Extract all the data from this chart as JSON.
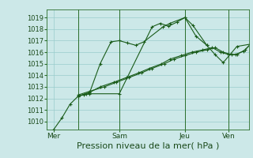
{
  "bg_color": "#cce8e8",
  "grid_color": "#99cccc",
  "line_color": "#1a5c1a",
  "xlabel": "Pression niveau de la mer( hPa )",
  "xlabel_fontsize": 8,
  "yticks": [
    1010,
    1011,
    1012,
    1013,
    1014,
    1015,
    1016,
    1017,
    1018,
    1019
  ],
  "ylim": [
    1009.3,
    1019.7
  ],
  "xtick_labels": [
    "Mer",
    "Sam",
    "Jeu",
    "Ven"
  ],
  "xtick_positions": [
    0,
    48,
    96,
    128
  ],
  "xlim": [
    -5,
    143
  ],
  "series_x": [
    [
      0,
      6,
      12,
      18,
      24,
      48,
      72,
      78,
      84,
      90,
      96,
      102,
      112
    ],
    [
      18,
      22,
      26,
      34,
      42,
      48,
      54,
      60,
      66,
      80,
      85,
      96,
      104,
      112,
      118,
      124,
      134,
      144
    ],
    [
      18,
      26,
      34,
      44,
      53,
      62,
      70,
      79,
      85,
      93,
      101,
      109,
      116,
      122,
      128,
      133,
      139,
      144
    ],
    [
      18,
      26,
      37,
      46,
      55,
      64,
      72,
      81,
      88,
      96,
      104,
      112,
      118,
      124,
      130,
      134,
      140,
      144
    ]
  ],
  "series_y": [
    [
      1009.3,
      1010.3,
      1011.5,
      1012.2,
      1012.4,
      1012.4,
      1018.2,
      1018.5,
      1018.25,
      1018.6,
      1019.0,
      1018.3,
      1016.6
    ],
    [
      1012.2,
      1012.3,
      1012.4,
      1015.0,
      1016.9,
      1017.0,
      1016.8,
      1016.6,
      1016.9,
      1018.2,
      1018.5,
      1019.0,
      1017.4,
      1016.6,
      1015.8,
      1015.1,
      1016.5,
      1016.7
    ],
    [
      1012.2,
      1012.5,
      1013.0,
      1013.4,
      1013.8,
      1014.2,
      1014.6,
      1015.0,
      1015.4,
      1015.7,
      1016.0,
      1016.2,
      1016.4,
      1016.0,
      1015.8,
      1015.8,
      1016.1,
      1016.7
    ],
    [
      1012.3,
      1012.6,
      1013.0,
      1013.4,
      1013.8,
      1014.2,
      1014.6,
      1015.0,
      1015.4,
      1015.7,
      1016.0,
      1016.2,
      1016.4,
      1016.0,
      1015.8,
      1015.8,
      1016.2,
      1016.7
    ]
  ],
  "vline_positions": [
    18,
    48,
    96,
    128
  ],
  "vline_color": "#2a6e2a",
  "figsize": [
    3.2,
    2.0
  ],
  "dpi": 100
}
